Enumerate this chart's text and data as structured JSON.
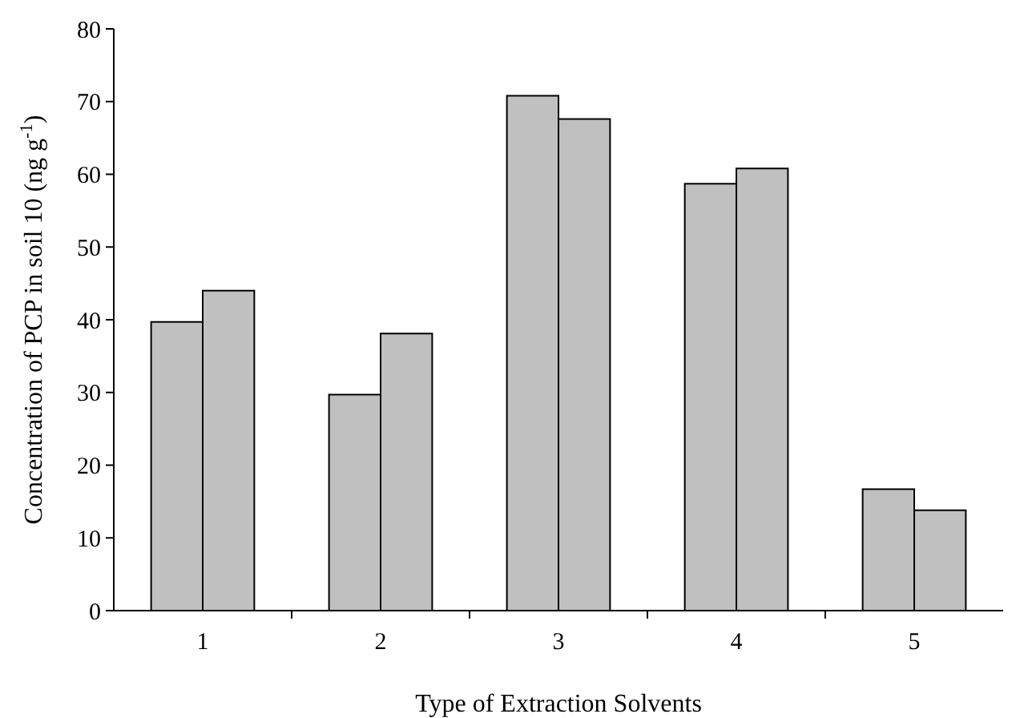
{
  "chart_data": {
    "type": "bar",
    "xlabel": "Type of Extraction Solvents",
    "ylabel": "Concentration of PCP in soil 10 (ng g$^{-1}$)",
    "categories": [
      "1",
      "2",
      "3",
      "4",
      "5"
    ],
    "series": [
      {
        "color": "#c0c0c0",
        "values": [
          39.7,
          29.7,
          70.8,
          58.7,
          16.7
        ]
      },
      {
        "color": "#c0c0c0",
        "values": [
          44,
          38.1,
          67.6,
          60.8,
          13.8
        ]
      }
    ],
    "ylim": [
      0,
      80
    ],
    "yticks": [
      0,
      10,
      20,
      30,
      40,
      50,
      60,
      70,
      80
    ],
    "grid": false
  }
}
